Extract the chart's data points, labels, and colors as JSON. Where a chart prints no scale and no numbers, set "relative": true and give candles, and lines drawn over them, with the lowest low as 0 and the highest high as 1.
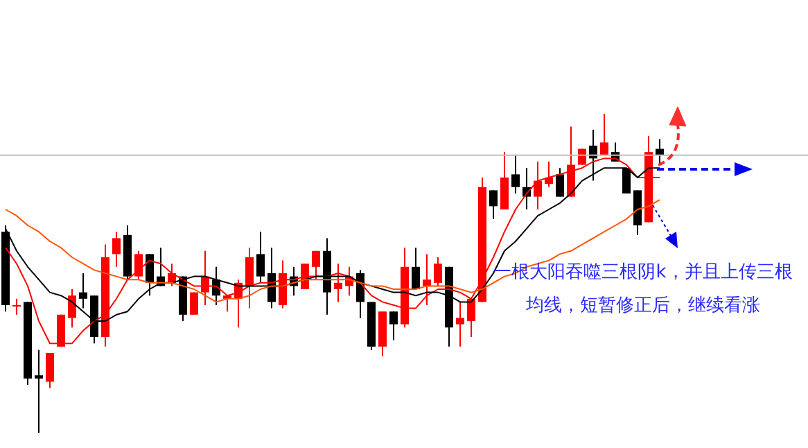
{
  "chart_data": {
    "type": "candlestick",
    "relative": true,
    "categories": [
      null,
      null,
      null,
      null,
      null,
      null,
      null,
      null,
      null,
      null,
      null,
      null,
      null,
      null,
      null,
      null,
      null,
      null,
      null,
      null,
      null,
      null,
      null,
      null,
      null,
      null,
      null,
      null,
      null,
      null,
      null,
      null,
      null,
      null,
      null,
      null,
      null,
      null,
      null,
      null,
      null,
      null,
      null,
      null,
      null,
      null,
      null,
      null,
      null,
      null,
      null,
      null,
      null,
      null,
      null,
      null,
      null,
      null,
      null,
      null
    ],
    "ohlc": [
      [
        0.63,
        0.65,
        0.38,
        0.4
      ],
      [
        0.4,
        0.42,
        0.37,
        0.4
      ],
      [
        0.41,
        0.41,
        0.15,
        0.17
      ],
      [
        0.18,
        0.26,
        0,
        0.17
      ],
      [
        0.16,
        0.25,
        0.14,
        0.25
      ],
      [
        0.27,
        0.37,
        0.27,
        0.37
      ],
      [
        0.36,
        0.45,
        0.33,
        0.43
      ],
      [
        0.44,
        0.5,
        0.39,
        0.42
      ],
      [
        0.43,
        0.43,
        0.28,
        0.3
      ],
      [
        0.3,
        0.59,
        0.27,
        0.55
      ],
      [
        0.56,
        0.63,
        0.52,
        0.61
      ],
      [
        0.62,
        0.65,
        0.48,
        0.49
      ],
      [
        0.49,
        0.57,
        0.48,
        0.56
      ],
      [
        0.56,
        0.56,
        0.43,
        0.47
      ],
      [
        0.49,
        0.58,
        0.46,
        0.46
      ],
      [
        0.47,
        0.53,
        0.46,
        0.5
      ],
      [
        0.49,
        0.49,
        0.35,
        0.37
      ],
      [
        0.37,
        0.44,
        0.37,
        0.44
      ],
      [
        0.44,
        0.57,
        0.4,
        0.49
      ],
      [
        0.48,
        0.52,
        0.4,
        0.43
      ],
      [
        0.42,
        0.43,
        0.38,
        0.43
      ],
      [
        0.42,
        0.48,
        0.33,
        0.47
      ],
      [
        0.46,
        0.58,
        0.39,
        0.55
      ],
      [
        0.56,
        0.63,
        0.47,
        0.49
      ],
      [
        0.5,
        0.58,
        0.39,
        0.41
      ],
      [
        0.4,
        0.54,
        0.39,
        0.5
      ],
      [
        0.49,
        0.52,
        0.43,
        0.46
      ],
      [
        0.45,
        0.53,
        0.45,
        0.53
      ],
      [
        0.52,
        0.57,
        0.48,
        0.57
      ],
      [
        0.57,
        0.61,
        0.37,
        0.44
      ],
      [
        0.45,
        0.53,
        0.41,
        0.47
      ],
      [
        0.46,
        0.52,
        0.43,
        0.49
      ],
      [
        0.5,
        0.51,
        0.36,
        0.41
      ],
      [
        0.41,
        0.41,
        0.26,
        0.27
      ],
      [
        0.27,
        0.38,
        0.24,
        0.38
      ],
      [
        0.38,
        0.38,
        0.29,
        0.34
      ],
      [
        0.34,
        0.58,
        0.33,
        0.52
      ],
      [
        0.52,
        0.58,
        0.45,
        0.45
      ],
      [
        0.46,
        0.56,
        0.4,
        0.48
      ],
      [
        0.47,
        0.55,
        0.46,
        0.53
      ],
      [
        0.52,
        0.52,
        0.27,
        0.33
      ],
      [
        0.34,
        0.41,
        0.27,
        0.36
      ],
      [
        0.35,
        0.42,
        0.3,
        0.42
      ],
      [
        0.41,
        0.8,
        0.41,
        0.77
      ],
      [
        0.76,
        0.76,
        0.67,
        0.71
      ],
      [
        0.7,
        0.88,
        0.7,
        0.8
      ],
      [
        0.81,
        0.87,
        0.75,
        0.77
      ],
      [
        0.77,
        0.83,
        0.7,
        0.74
      ],
      [
        0.74,
        0.85,
        0.7,
        0.79
      ],
      [
        0.78,
        0.85,
        0.77,
        0.8
      ],
      [
        0.81,
        0.83,
        0.74,
        0.74
      ],
      [
        0.74,
        0.96,
        0.74,
        0.84
      ],
      [
        0.84,
        0.89,
        0.84,
        0.89
      ],
      [
        0.9,
        0.95,
        0.79,
        0.86
      ],
      [
        0.87,
        1,
        0.87,
        0.91
      ],
      [
        0.88,
        0.91,
        0.85,
        0.85
      ],
      [
        0.83,
        0.83,
        0.75,
        0.75
      ],
      [
        0.76,
        0.76,
        0.62,
        0.65
      ],
      [
        0.66,
        0.93,
        0.66,
        0.88
      ],
      [
        0.89,
        0.92,
        0.84,
        0.87
      ]
    ],
    "colors": [
      "#000000",
      "#ff0000",
      "#000000",
      "#000000",
      "#ff0000",
      "#ff0000",
      "#ff0000",
      "#000000",
      "#000000",
      "#ff0000",
      "#ff0000",
      "#000000",
      "#ff0000",
      "#000000",
      "#000000",
      "#ff0000",
      "#000000",
      "#ff0000",
      "#ff0000",
      "#000000",
      "#ff0000",
      "#ff0000",
      "#ff0000",
      "#000000",
      "#000000",
      "#ff0000",
      "#000000",
      "#ff0000",
      "#ff0000",
      "#000000",
      "#ff0000",
      "#ff0000",
      "#000000",
      "#000000",
      "#ff0000",
      "#000000",
      "#ff0000",
      "#000000",
      "#ff0000",
      "#ff0000",
      "#000000",
      "#ff0000",
      "#ff0000",
      "#ff0000",
      "#000000",
      "#ff0000",
      "#000000",
      "#000000",
      "#ff0000",
      "#ff0000",
      "#000000",
      "#ff0000",
      "#ff0000",
      "#000000",
      "#ff0000",
      "#000000",
      "#000000",
      "#000000",
      "#ff0000",
      "#000000"
    ],
    "series": [
      {
        "type": "line",
        "color": "#ff0000",
        "values": [
          0.58,
          0.53,
          0.46,
          0.35,
          0.28,
          0.28,
          0.28,
          0.32,
          0.35,
          0.37,
          0.42,
          0.48,
          0.51,
          0.54,
          0.53,
          0.5,
          0.48,
          0.46,
          0.46,
          0.46,
          0.43,
          0.44,
          0.46,
          0.47,
          0.47,
          0.48,
          0.48,
          0.49,
          0.49,
          0.49,
          0.5,
          0.49,
          0.47,
          0.43,
          0.41,
          0.4,
          0.39,
          0.39,
          0.43,
          0.45,
          0.45,
          0.44,
          0.42,
          0.48,
          0.55,
          0.63,
          0.7,
          0.75,
          0.79,
          0.8,
          0.81,
          0.82,
          0.83,
          0.85,
          0.86,
          0.86,
          0.84,
          0.8,
          0.8,
          0.8
        ]
      },
      {
        "type": "line",
        "color": "#000000",
        "values": [
          0.64,
          0.57,
          0.52,
          0.48,
          0.44,
          0.43,
          0.41,
          0.38,
          0.35,
          0.35,
          0.37,
          0.38,
          0.42,
          0.45,
          0.47,
          0.47,
          0.48,
          0.49,
          0.49,
          0.48,
          0.47,
          0.46,
          0.46,
          0.46,
          0.46,
          0.46,
          0.47,
          0.48,
          0.49,
          0.49,
          0.49,
          0.49,
          0.47,
          0.46,
          0.45,
          0.44,
          0.44,
          0.43,
          0.44,
          0.44,
          0.43,
          0.41,
          0.41,
          0.45,
          0.5,
          0.57,
          0.6,
          0.64,
          0.68,
          0.7,
          0.72,
          0.75,
          0.79,
          0.81,
          0.83,
          0.83,
          0.83,
          0.8,
          0.83,
          0.83
        ]
      },
      {
        "type": "line",
        "color": "#ff5500",
        "values": [
          0.7,
          0.68,
          0.65,
          0.63,
          0.6,
          0.58,
          0.55,
          0.53,
          0.51,
          0.5,
          0.49,
          0.48,
          0.48,
          0.47,
          0.47,
          0.47,
          0.46,
          0.45,
          0.43,
          0.41,
          0.42,
          0.42,
          0.43,
          0.45,
          0.46,
          0.46,
          0.47,
          0.48,
          0.48,
          0.48,
          0.48,
          0.48,
          0.47,
          0.46,
          0.46,
          0.45,
          0.45,
          0.45,
          0.46,
          0.46,
          0.46,
          0.45,
          0.44,
          0.45,
          0.47,
          0.49,
          0.5,
          0.52,
          0.53,
          0.54,
          0.56,
          0.57,
          0.59,
          0.61,
          0.63,
          0.65,
          0.67,
          0.7,
          0.71,
          0.73
        ]
      }
    ],
    "ref_lines": [
      {
        "axis": "y",
        "value": 0.87,
        "color": "#c0c0c0"
      }
    ],
    "annotations": [
      "一根大阳吞噬三根阴k，并且上传三根均线，短暂修正后，继续看涨"
    ]
  }
}
